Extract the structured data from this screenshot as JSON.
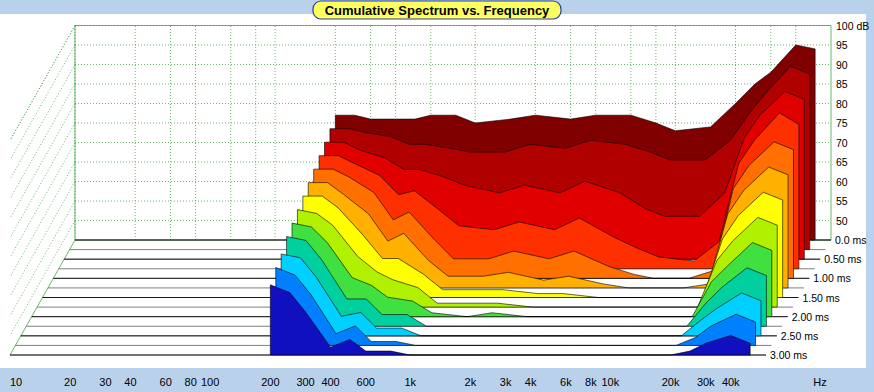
{
  "chart_data": {
    "type": "waterfall",
    "title": "Cumulative Spectrum vs. Frequency",
    "x_label": "Hz",
    "log": "x",
    "grid": true,
    "xlim": [
      10,
      60000
    ],
    "xticks": [
      10,
      20,
      30,
      40,
      60,
      80,
      100,
      200,
      300,
      400,
      600,
      {
        "value": 1000,
        "label": "1k"
      },
      {
        "value": 2000,
        "label": "2k"
      },
      {
        "value": 3000,
        "label": "3k"
      },
      {
        "value": 4000,
        "label": "4k"
      },
      {
        "value": 6000,
        "label": "6k"
      },
      {
        "value": 8000,
        "label": "8k"
      },
      {
        "value": 10000,
        "label": "10k"
      },
      {
        "value": 20000,
        "label": "20k"
      },
      {
        "value": 30000,
        "label": "30k"
      },
      {
        "value": 40000,
        "label": "40k"
      }
    ],
    "ylim": [
      45,
      100
    ],
    "yticks": [
      50,
      55,
      60,
      65,
      70,
      75,
      80,
      85,
      90,
      95,
      {
        "value": 100,
        "label": "100 dB"
      }
    ],
    "time_lim": [
      0,
      3
    ],
    "time_ticks": [
      {
        "value": 0,
        "label": "0.0 ms"
      },
      {
        "value": 0.5,
        "label": "0.50 ms"
      },
      {
        "value": 1,
        "label": "1.00 ms"
      },
      {
        "value": 1.5,
        "label": "1.50 ms"
      },
      {
        "value": 2,
        "label": "2.00 ms"
      },
      {
        "value": 2.5,
        "label": "2.50 ms"
      },
      {
        "value": 3,
        "label": "3.00 ms"
      }
    ],
    "x": [
      200,
      250,
      300,
      400,
      500,
      600,
      800,
      1000,
      1500,
      2000,
      3000,
      4000,
      6000,
      8000,
      10000,
      15000,
      20000,
      25000,
      30000,
      40000,
      50000
    ],
    "series": [
      {
        "time": 0,
        "color": "#800000",
        "values": [
          77,
          77,
          76,
          76,
          76,
          77,
          77,
          75,
          76,
          77,
          76,
          77,
          77,
          75,
          73,
          74,
          80,
          85,
          88,
          95,
          94
        ]
      },
      {
        "time": 0.25,
        "color": "#b00000",
        "values": [
          76,
          76,
          75,
          74,
          72,
          72,
          71,
          70,
          70,
          72,
          71,
          73,
          72,
          70,
          68,
          68,
          73,
          80,
          85,
          92,
          90
        ]
      },
      {
        "time": 0.5,
        "color": "#e00000",
        "values": [
          75,
          75,
          73,
          71,
          68,
          68,
          66,
          64,
          62,
          64,
          62,
          65,
          62,
          58,
          56,
          56,
          62,
          76,
          82,
          88,
          86
        ]
      },
      {
        "time": 0.75,
        "color": "#ff3000",
        "values": [
          74,
          74,
          72,
          69,
          64,
          65,
          60,
          56,
          55,
          57,
          55,
          58,
          53,
          50,
          48,
          47,
          52,
          72,
          78,
          85,
          82
        ]
      },
      {
        "time": 1,
        "color": "#ff7000",
        "values": [
          73,
          73,
          71,
          67,
          60,
          62,
          55,
          50,
          50,
          52,
          50,
          52,
          48,
          46,
          45,
          45,
          47,
          68,
          74,
          80,
          78
        ]
      },
      {
        "time": 1.25,
        "color": "#ffb000",
        "values": [
          72,
          72,
          69,
          64,
          57,
          59,
          52,
          48,
          48,
          49,
          47,
          48,
          46,
          45,
          45,
          45,
          46,
          64,
          70,
          76,
          74
        ]
      },
      {
        "time": 1.5,
        "color": "#ffff00",
        "values": [
          71,
          71,
          68,
          61,
          55,
          55,
          51,
          47,
          47,
          47,
          46,
          46,
          45,
          45,
          45,
          45,
          45,
          60,
          66,
          72,
          70
        ]
      },
      {
        "time": 1.75,
        "color": "#b0f000",
        "values": [
          70,
          69,
          66,
          58,
          54,
          52,
          50,
          46,
          46,
          46,
          45,
          45,
          45,
          45,
          45,
          45,
          45,
          57,
          62,
          68,
          66
        ]
      },
      {
        "time": 2,
        "color": "#40e040",
        "values": [
          69,
          68,
          64,
          55,
          53,
          50,
          49,
          46,
          45,
          46,
          45,
          45,
          45,
          45,
          45,
          45,
          45,
          54,
          58,
          64,
          62
        ]
      },
      {
        "time": 2.25,
        "color": "#00d0a0",
        "values": [
          68,
          67,
          62,
          52,
          52,
          48,
          48,
          45,
          45,
          45,
          45,
          45,
          45,
          45,
          45,
          45,
          45,
          51,
          55,
          60,
          58
        ]
      },
      {
        "time": 2.5,
        "color": "#00d0ff",
        "values": [
          66,
          65,
          60,
          50,
          51,
          47,
          47,
          45,
          45,
          45,
          45,
          45,
          45,
          45,
          45,
          45,
          45,
          49,
          52,
          56,
          54
        ]
      },
      {
        "time": 2.75,
        "color": "#0080ff",
        "values": [
          65,
          63,
          58,
          48,
          50,
          46,
          46,
          45,
          45,
          45,
          45,
          45,
          45,
          45,
          45,
          45,
          45,
          47,
          50,
          53,
          51
        ]
      },
      {
        "time": 3,
        "color": "#1010c0",
        "values": [
          63,
          61,
          56,
          47,
          49,
          46,
          46,
          45,
          45,
          45,
          45,
          45,
          45,
          45,
          45,
          45,
          45,
          46,
          48,
          50,
          48
        ]
      }
    ]
  }
}
